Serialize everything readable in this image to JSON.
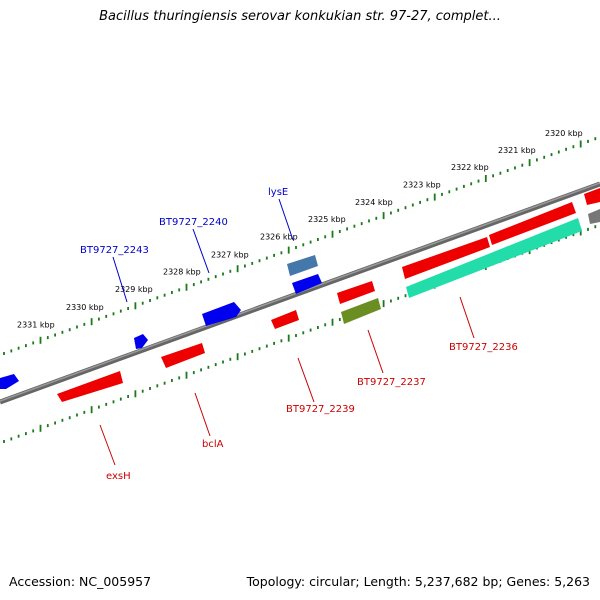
{
  "title": "Bacillus thuringiensis serovar konkukian str. 97-27, complet...",
  "footer": {
    "accession": "Accession: NC_005957",
    "topology": "Topology: circular; Length: 5,237,682 bp; Genes: 5,263"
  },
  "scale_labels": [
    "2320 kbp",
    "2321 kbp",
    "2322 kbp",
    "2323 kbp",
    "2324 kbp",
    "2325 kbp",
    "2326 kbp",
    "2327 kbp",
    "2328 kbp",
    "2329 kbp",
    "2330 kbp",
    "2331 kbp"
  ],
  "gene_labels": [
    {
      "id": "BT9727_2243",
      "text": "BT9727_2243",
      "color": "#0000cc"
    },
    {
      "id": "BT9727_2240",
      "text": "BT9727_2240",
      "color": "#0000cc"
    },
    {
      "id": "lysE",
      "text": "lysE",
      "color": "#0000cc"
    },
    {
      "id": "exsH",
      "text": "exsH",
      "color": "#cc0000"
    },
    {
      "id": "bclA",
      "text": "bclA",
      "color": "#cc0000"
    },
    {
      "id": "BT9727_2239",
      "text": "BT9727_2239",
      "color": "#cc0000"
    },
    {
      "id": "BT9727_2237",
      "text": "BT9727_2237",
      "color": "#cc0000"
    },
    {
      "id": "BT9727_2236",
      "text": "BT9727_2236",
      "color": "#cc0000"
    }
  ],
  "colors": {
    "backbone": "#777777",
    "tick": "#1a7a1a",
    "forward_gene": "#0000ee",
    "reverse_gene": "#ee0000",
    "lysE_gene": "#4477aa",
    "BT9727_2237_gene": "#6b8e23",
    "BT9727_2236_gene": "#22ddaa"
  }
}
